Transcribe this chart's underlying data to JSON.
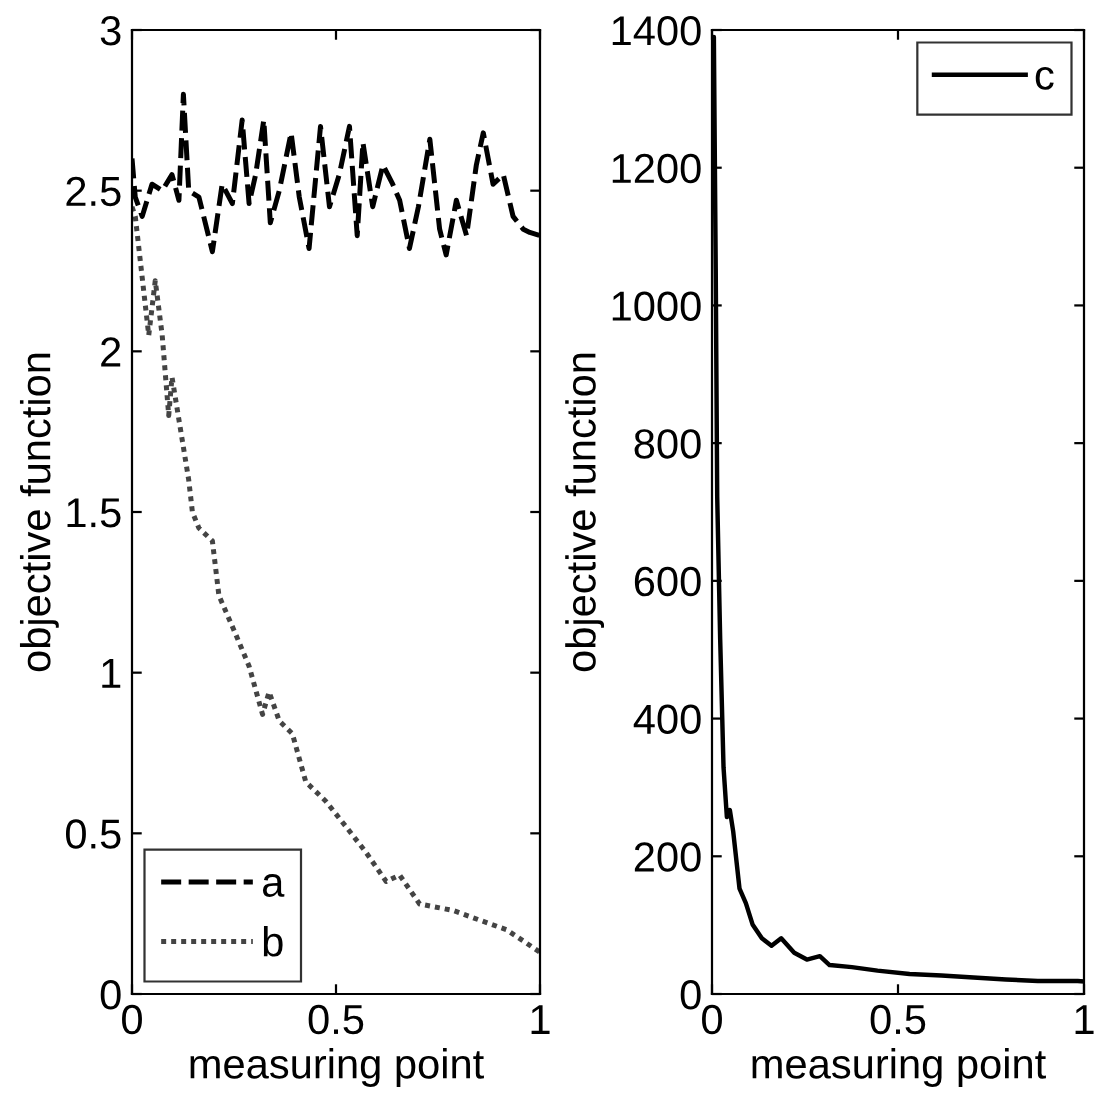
{
  "chart_data": [
    {
      "type": "line",
      "xlabel": "measuring point",
      "ylabel": "objective function",
      "xlim": [
        0,
        1
      ],
      "xticks": [
        0,
        0.5,
        1
      ],
      "ylim": [
        0,
        3
      ],
      "yticks": [
        0,
        0.5,
        1,
        1.5,
        2,
        2.5,
        3
      ],
      "grid": false,
      "legend": "bottom left",
      "series": [
        {
          "name": "a",
          "color": "#000000",
          "line_style": "dashed",
          "x": [
            0,
            0.008,
            0.025,
            0.049,
            0.074,
            0.098,
            0.115,
            0.126,
            0.139,
            0.164,
            0.197,
            0.221,
            0.246,
            0.27,
            0.287,
            0.303,
            0.323,
            0.339,
            0.361,
            0.39,
            0.41,
            0.434,
            0.462,
            0.484,
            0.508,
            0.533,
            0.552,
            0.566,
            0.59,
            0.615,
            0.639,
            0.656,
            0.68,
            0.702,
            0.73,
            0.754,
            0.77,
            0.795,
            0.82,
            0.844,
            0.861,
            0.885,
            0.91,
            0.934,
            0.959,
            0.975,
            1
          ],
          "values": [
            2.6,
            2.48,
            2.42,
            2.52,
            2.5,
            2.55,
            2.47,
            2.8,
            2.5,
            2.48,
            2.31,
            2.52,
            2.46,
            2.72,
            2.46,
            2.55,
            2.72,
            2.4,
            2.5,
            2.68,
            2.48,
            2.32,
            2.7,
            2.45,
            2.55,
            2.7,
            2.36,
            2.65,
            2.45,
            2.58,
            2.52,
            2.47,
            2.32,
            2.45,
            2.66,
            2.38,
            2.3,
            2.47,
            2.36,
            2.58,
            2.68,
            2.52,
            2.55,
            2.42,
            2.38,
            2.37,
            2.36
          ]
        },
        {
          "name": "b",
          "color": "#444444",
          "line_style": "dotted",
          "x": [
            0,
            0.008,
            0.041,
            0.057,
            0.074,
            0.09,
            0.098,
            0.139,
            0.148,
            0.164,
            0.197,
            0.213,
            0.254,
            0.287,
            0.32,
            0.336,
            0.361,
            0.393,
            0.426,
            0.475,
            0.525,
            0.574,
            0.623,
            0.656,
            0.705,
            0.787,
            0.852,
            0.918,
            1
          ],
          "values": [
            2.45,
            2.42,
            2.05,
            2.22,
            2.05,
            1.8,
            1.92,
            1.6,
            1.5,
            1.45,
            1.41,
            1.24,
            1.12,
            1.02,
            0.87,
            0.94,
            0.85,
            0.81,
            0.66,
            0.6,
            0.52,
            0.44,
            0.35,
            0.37,
            0.28,
            0.26,
            0.23,
            0.2,
            0.13
          ]
        }
      ]
    },
    {
      "type": "line",
      "xlabel": "measuring point",
      "ylabel": "objective function",
      "xlim": [
        0,
        1
      ],
      "xticks": [
        0,
        0.5,
        1
      ],
      "ylim": [
        0,
        1400
      ],
      "yticks": [
        0,
        200,
        400,
        600,
        800,
        1000,
        1200,
        1400
      ],
      "grid": false,
      "legend": "top right",
      "series": [
        {
          "name": "c",
          "color": "#000000",
          "line_style": "solid",
          "x": [
            0,
            0.005,
            0.01,
            0.014,
            0.022,
            0.031,
            0.04,
            0.048,
            0.057,
            0.074,
            0.091,
            0.109,
            0.134,
            0.16,
            0.186,
            0.221,
            0.255,
            0.29,
            0.316,
            0.376,
            0.445,
            0.531,
            0.617,
            0.703,
            0.79,
            0.876,
            0.983,
            1
          ],
          "values": [
            1200,
            1390,
            1053,
            722,
            515,
            329,
            257,
            267,
            236,
            153,
            132,
            101,
            81,
            70,
            81,
            60,
            50,
            55,
            42,
            39,
            34,
            29,
            27,
            24,
            21,
            19,
            19,
            18
          ]
        }
      ]
    }
  ]
}
